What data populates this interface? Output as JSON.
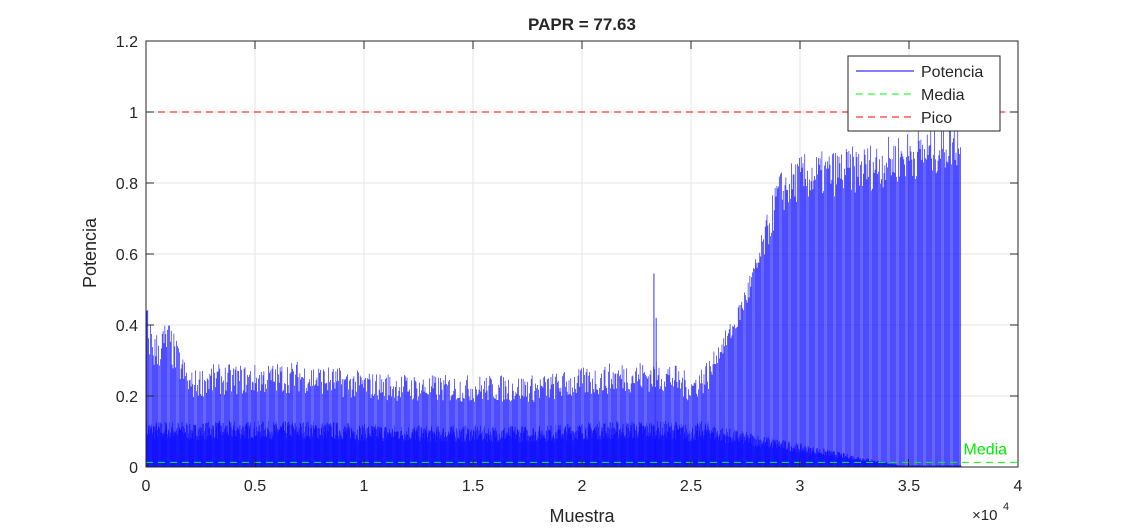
{
  "chart_data": {
    "type": "line",
    "title": "PAPR = 77.63",
    "xlabel": "Muestra",
    "ylabel": "Potencia",
    "x_exponent_label": "×10",
    "x_exponent_power": "4",
    "xlim": [
      0,
      40000
    ],
    "ylim": [
      0,
      1.2
    ],
    "x_ticks": [
      0,
      5000,
      10000,
      15000,
      20000,
      25000,
      30000,
      35000,
      40000
    ],
    "x_tick_labels": [
      "0",
      "0.5",
      "1",
      "1.5",
      "2",
      "2.5",
      "3",
      "3.5",
      "4"
    ],
    "y_ticks": [
      0,
      0.2,
      0.4,
      0.6,
      0.8,
      1.0,
      1.2
    ],
    "y_tick_labels": [
      "0",
      "0.2",
      "0.4",
      "0.6",
      "0.8",
      "1",
      "1.2"
    ],
    "grid": true,
    "legend_position": "top-right",
    "series": [
      {
        "name": "Potencia",
        "color": "#0000ff",
        "style": "solid",
        "envelope": {
          "x": [
            0,
            400,
            1000,
            2000,
            3000,
            5000,
            7000,
            10000,
            13000,
            15000,
            18000,
            20000,
            22000,
            24000,
            25000,
            26000,
            27000,
            28000,
            29000,
            30000,
            31000,
            32000,
            33000,
            34000,
            35000,
            36000,
            37000,
            37400
          ],
          "y": [
            0.47,
            0.38,
            0.42,
            0.27,
            0.29,
            0.29,
            0.3,
            0.27,
            0.26,
            0.26,
            0.26,
            0.28,
            0.3,
            0.3,
            0.26,
            0.32,
            0.43,
            0.6,
            0.83,
            0.88,
            0.89,
            0.9,
            0.91,
            0.93,
            0.95,
            0.96,
            0.99,
            0.99
          ]
        },
        "spikes": [
          {
            "x": 23300,
            "y": 0.545
          },
          {
            "x": 23400,
            "y": 0.42
          }
        ]
      },
      {
        "name": "Media",
        "color": "#00ff00",
        "style": "dashed",
        "y": 0.0129
      },
      {
        "name": "Pico",
        "color": "#ff0000",
        "style": "dashed",
        "y": 1.0
      }
    ],
    "annotations": [
      {
        "text": "Media",
        "x": 37500,
        "y": 0.035,
        "color": "#00ee00"
      },
      {
        "text": "Pico",
        "x": 37500,
        "y": 1.03,
        "color": "#ff0000"
      }
    ]
  }
}
